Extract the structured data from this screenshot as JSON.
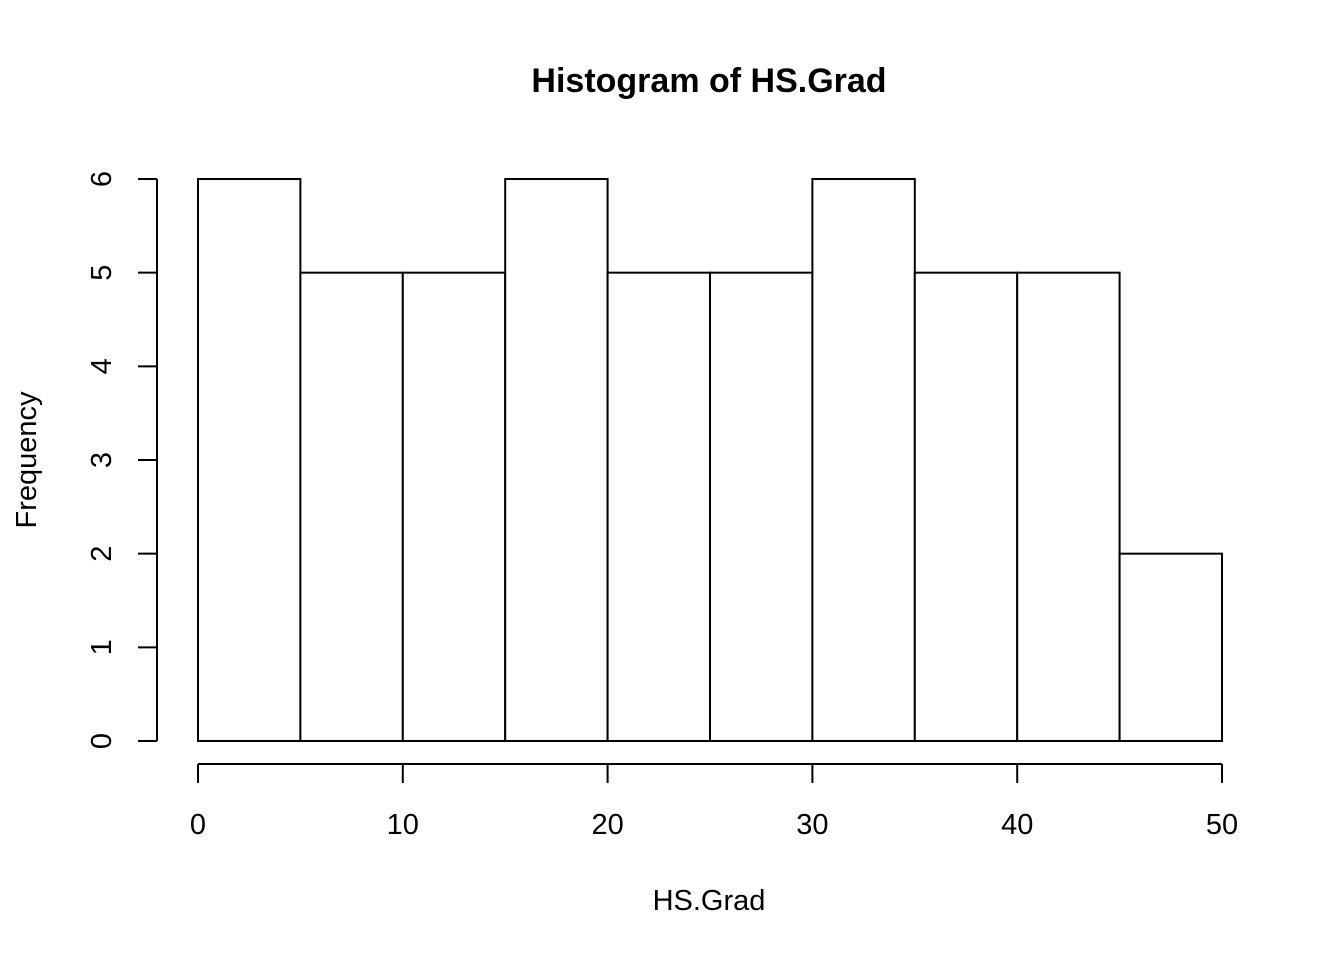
{
  "chart_data": {
    "type": "bar",
    "title": "Histogram of HS.Grad",
    "xlabel": "HS.Grad",
    "ylabel": "Frequency",
    "bin_edges": [
      0,
      5,
      10,
      15,
      20,
      25,
      30,
      35,
      40,
      45,
      50
    ],
    "values": [
      6,
      5,
      5,
      6,
      5,
      5,
      6,
      5,
      5,
      2
    ],
    "xlim": [
      0,
      50
    ],
    "ylim": [
      0,
      6
    ],
    "x_ticks": [
      0,
      10,
      20,
      30,
      40,
      50
    ],
    "y_ticks": [
      0,
      1,
      2,
      3,
      4,
      5,
      6
    ],
    "grid": false,
    "bar_fill": "#ffffff",
    "bar_stroke": "#000000"
  }
}
